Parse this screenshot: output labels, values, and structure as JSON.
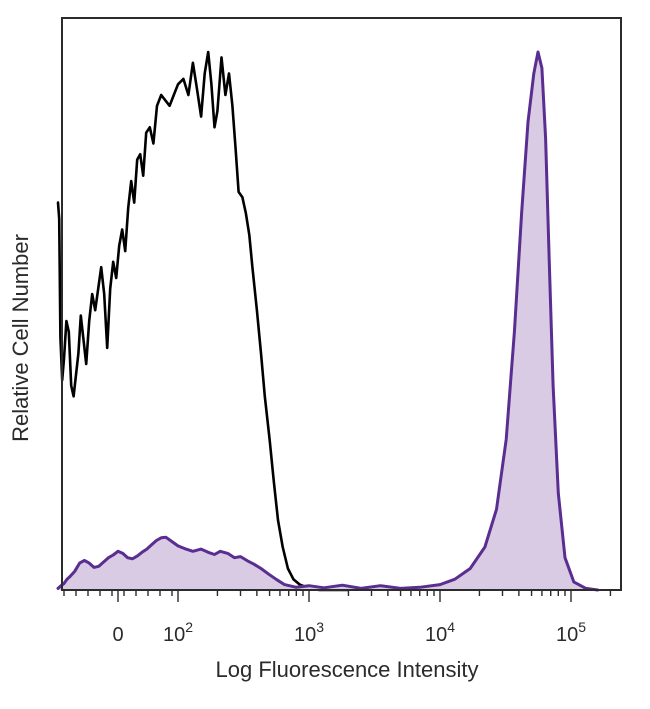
{
  "chart_data": {
    "type": "area",
    "title": "",
    "xlabel": "Log Fluorescence Intensity",
    "ylabel": "Relative Cell Number",
    "x_scale": "biexponential",
    "xlim": [
      -100,
      200000
    ],
    "ylim": [
      0,
      100
    ],
    "x_tick_labels": [
      {
        "value": 0,
        "base": "0",
        "exp": ""
      },
      {
        "value": 100,
        "base": "10",
        "exp": "2"
      },
      {
        "value": 1000,
        "base": "10",
        "exp": "3"
      },
      {
        "value": 10000,
        "base": "10",
        "exp": "4"
      },
      {
        "value": 100000,
        "base": "10",
        "exp": "5"
      }
    ],
    "minor_ticks": [
      -90,
      -70,
      -50,
      -30,
      -10,
      10,
      30,
      50,
      70,
      90,
      200,
      300,
      400,
      500,
      600,
      700,
      800,
      900,
      2000,
      3000,
      4000,
      5000,
      6000,
      7000,
      8000,
      9000,
      20000,
      30000,
      40000,
      50000,
      60000,
      70000,
      80000,
      90000,
      200000
    ],
    "grid": false,
    "legend": "none",
    "series": [
      {
        "style": "line",
        "color": "#000000",
        "x": [
          -100,
          -98,
          -96,
          -93,
          -90,
          -86,
          -82,
          -78,
          -74,
          -70,
          -66,
          -62,
          -58,
          -53,
          -48,
          -43,
          -38,
          -33,
          -28,
          -23,
          -18,
          -13,
          -8,
          -3,
          2,
          7,
          12,
          17,
          22,
          27,
          32,
          37,
          42,
          47,
          53,
          59,
          65,
          72,
          79,
          86,
          93,
          100,
          110,
          120,
          130,
          140,
          150,
          160,
          170,
          180,
          190,
          200,
          215,
          230,
          245,
          260,
          275,
          290,
          310,
          330,
          350,
          370,
          400,
          430,
          460,
          500,
          540,
          580,
          630,
          690,
          760,
          850,
          960,
          1000,
          1200,
          1500,
          2000
        ],
        "y": [
          72,
          69,
          47,
          39,
          43,
          50,
          48,
          38,
          36,
          40,
          44,
          51,
          47,
          42,
          50,
          55,
          52,
          56,
          60,
          55,
          45,
          56,
          61,
          58,
          64,
          67,
          63,
          71,
          76,
          72,
          80,
          81,
          77,
          85,
          86,
          83,
          90,
          92,
          91,
          90,
          92,
          94,
          95,
          92,
          98,
          93,
          88,
          96,
          100,
          94,
          86,
          89,
          99,
          92,
          96,
          90,
          82,
          74,
          73,
          70,
          66,
          60,
          52,
          44,
          36,
          28,
          20,
          13,
          8,
          4,
          2,
          1,
          0.5,
          0.3,
          0,
          0,
          0
        ]
      },
      {
        "style": "filled",
        "color": "#5a2d91",
        "fill": "#d9cbe3",
        "x": [
          -100,
          -95,
          -90,
          -85,
          -80,
          -72,
          -64,
          -56,
          -48,
          -40,
          -32,
          -24,
          -16,
          -8,
          0,
          8,
          16,
          24,
          32,
          40,
          48,
          56,
          64,
          72,
          80,
          90,
          100,
          115,
          130,
          150,
          170,
          190,
          210,
          240,
          270,
          300,
          340,
          380,
          430,
          490,
          560,
          650,
          800,
          1000,
          1300,
          1800,
          2500,
          3500,
          5000,
          7000,
          10000,
          13000,
          17000,
          22000,
          27000,
          32000,
          37000,
          42000,
          47000,
          52000,
          56000,
          60000,
          64000,
          68000,
          73000,
          80000,
          90000,
          105000,
          130000,
          160000
        ],
        "y": [
          0.3,
          0.8,
          1.2,
          2.0,
          2.5,
          3.5,
          5.0,
          5.5,
          5.0,
          4.2,
          4.4,
          5.2,
          6.0,
          6.5,
          7.2,
          6.8,
          6.0,
          5.8,
          6.3,
          7.0,
          7.6,
          8.4,
          9.2,
          9.7,
          9.8,
          9.0,
          8.2,
          7.6,
          7.2,
          7.6,
          7.0,
          6.6,
          7.2,
          6.8,
          6.0,
          6.2,
          5.4,
          4.8,
          4.0,
          3.0,
          2.0,
          1.0,
          0.5,
          0.8,
          0.4,
          0.9,
          0.3,
          0.8,
          0.3,
          0.5,
          1.0,
          2.0,
          4.0,
          8.0,
          15.0,
          28.0,
          48.0,
          70.0,
          87.0,
          96.0,
          100.0,
          97.0,
          84.0,
          62.0,
          38.0,
          18.0,
          6.0,
          1.5,
          0.3,
          0.0
        ]
      }
    ]
  }
}
